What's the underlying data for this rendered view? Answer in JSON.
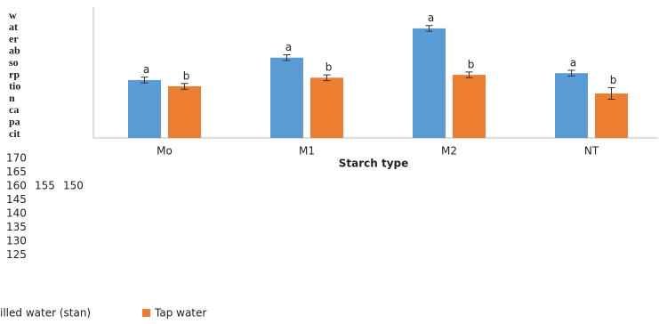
{
  "chart_data": {
    "type": "bar",
    "ylabel_lines": [
      "w",
      "at",
      "er",
      "ab",
      "so",
      "rp",
      "tio",
      "n",
      "ca",
      "pa",
      "cit"
    ],
    "xlabel": "Starch type",
    "categories": [
      "Mo",
      "M1",
      "M2",
      "NT"
    ],
    "series": [
      {
        "name": "illed water (stan)",
        "color": "#5b9bd5",
        "values": [
          145.2,
          153,
          163.2,
          147.6
        ],
        "errors": [
          1,
          1,
          1,
          1
        ],
        "letters": [
          "a",
          "a",
          "a",
          "a"
        ]
      },
      {
        "name": "Tap water",
        "color": "#ed7d31",
        "values": [
          143,
          146,
          147,
          140.5
        ],
        "errors": [
          1,
          1,
          1,
          2
        ],
        "letters": [
          "b",
          "b",
          "b",
          "b"
        ]
      }
    ],
    "ylim": [
      125,
      170
    ],
    "yticks": [
      170,
      165,
      160,
      155,
      150,
      145,
      140,
      135,
      130,
      125
    ]
  }
}
